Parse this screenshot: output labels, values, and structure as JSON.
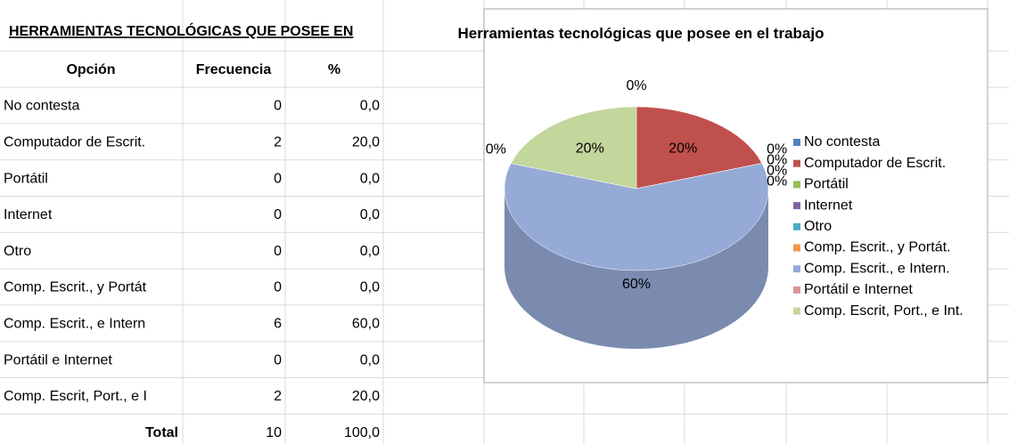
{
  "table": {
    "title": "HERRAMIENTAS TECNOLÓGICAS QUE POSEE EN",
    "header": [
      "Opción",
      "Frecuencia",
      "%"
    ],
    "rows": [
      [
        "No contesta",
        "0",
        "0,0"
      ],
      [
        "Computador de Escrit.",
        "2",
        "20,0"
      ],
      [
        "Portátil",
        "0",
        "0,0"
      ],
      [
        "Internet",
        "0",
        "0,0"
      ],
      [
        "Otro",
        "0",
        "0,0"
      ],
      [
        "Comp. Escrit., y Portát",
        "0",
        "0,0"
      ],
      [
        "Comp. Escrit., e Intern",
        "6",
        "60,0"
      ],
      [
        "Portátil e Internet",
        "0",
        "0,0"
      ],
      [
        "Comp. Escrit, Port., e I",
        "2",
        "20,0"
      ]
    ],
    "total": [
      "Total",
      "10",
      "100,0"
    ]
  },
  "chart_data": {
    "type": "pie",
    "title": "Herramientas tecnológicas que posee en el trabajo",
    "categories": [
      "No contesta",
      "Computador de Escrit.",
      "Portátil",
      "Internet",
      "Otro",
      "Comp. Escrit., y Portát.",
      "Comp. Escrit., e Intern.",
      "Portátil e Internet",
      "Comp. Escrit, Port., e Int."
    ],
    "values": [
      0,
      20,
      0,
      0,
      0,
      0,
      60,
      0,
      20
    ],
    "value_labels": [
      "0%",
      "20%",
      "0%",
      "0%",
      "0%",
      "0%",
      "60%",
      "0%",
      "20%"
    ],
    "colors": [
      "#4f81bd",
      "#c0504d",
      "#9bbb59",
      "#8064a2",
      "#4bacc6",
      "#f79646",
      "#95aad6",
      "#d99694",
      "#c3d69b"
    ],
    "legend": "right"
  }
}
